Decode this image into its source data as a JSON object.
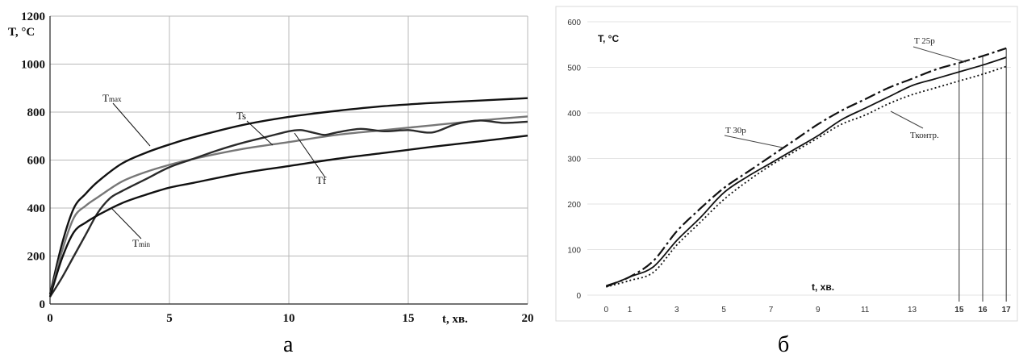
{
  "chart_data": [
    {
      "type": "line",
      "panel_label": "а",
      "xlabel": "t, хв.",
      "ylabel": "T, °C",
      "xlim": [
        0,
        20
      ],
      "ylim": [
        0,
        1200
      ],
      "xticks": [
        "0",
        "5",
        "10",
        "15",
        "20"
      ],
      "yticks": [
        "0",
        "200",
        "400",
        "600",
        "800",
        "1000",
        "1200"
      ],
      "grid": true,
      "series": [
        {
          "name": "Tmax",
          "color": "#111111",
          "x": [
            0,
            0.5,
            1,
            1.5,
            2,
            3,
            4,
            5,
            6,
            8,
            10,
            12,
            14,
            16,
            18,
            20
          ],
          "y": [
            40,
            250,
            400,
            460,
            510,
            585,
            630,
            665,
            695,
            745,
            780,
            805,
            825,
            838,
            848,
            858
          ]
        },
        {
          "name": "Ts",
          "color": "#777777",
          "x": [
            0,
            0.5,
            1,
            1.5,
            2,
            3,
            4,
            5,
            6,
            8,
            10,
            12,
            14,
            16,
            18,
            20
          ],
          "y": [
            30,
            220,
            360,
            410,
            445,
            510,
            550,
            580,
            605,
            645,
            675,
            705,
            725,
            745,
            765,
            782
          ]
        },
        {
          "name": "Tf",
          "color": "#2a2a2a",
          "x": [
            0,
            0.5,
            1,
            1.5,
            2,
            2.5,
            3,
            4,
            5,
            6,
            7,
            8,
            9,
            10,
            10.5,
            11,
            11.5,
            12,
            13,
            14,
            15,
            16,
            17,
            18,
            19,
            20
          ],
          "y": [
            30,
            110,
            200,
            290,
            380,
            440,
            470,
            520,
            570,
            605,
            640,
            670,
            695,
            720,
            725,
            715,
            705,
            715,
            730,
            720,
            725,
            715,
            750,
            765,
            755,
            760
          ]
        },
        {
          "name": "Tmin",
          "color": "#111111",
          "x": [
            0,
            0.5,
            1,
            1.5,
            2,
            3,
            4,
            5,
            6,
            8,
            10,
            12,
            14,
            16,
            18,
            20
          ],
          "y": [
            30,
            190,
            300,
            340,
            370,
            420,
            455,
            485,
            505,
            545,
            575,
            605,
            630,
            655,
            678,
            702
          ]
        }
      ],
      "annotations": [
        {
          "text": "Tmax",
          "main": "T",
          "sub": "max"
        },
        {
          "text": "Ts",
          "main": "Ts",
          "sub": ""
        },
        {
          "text": "Tf",
          "main": "Tf",
          "sub": ""
        },
        {
          "text": "Tmin",
          "main": "T",
          "sub": "min"
        }
      ]
    },
    {
      "type": "line",
      "panel_label": "б",
      "xlabel": "t, хв.",
      "ylabel": "T, °C",
      "xlim": [
        -0.8,
        17.2
      ],
      "ylim": [
        0,
        600
      ],
      "xticks": [
        "0",
        "1",
        "3",
        "5",
        "7",
        "9",
        "11",
        "13",
        "15",
        "16",
        "17"
      ],
      "xticks_red": [
        "15",
        "16",
        "17"
      ],
      "yticks": [
        "0",
        "100",
        "200",
        "300",
        "400",
        "500",
        "600"
      ],
      "grid": true,
      "series": [
        {
          "name": "T 30р",
          "style": "dashdot",
          "color": "#111111",
          "x": [
            0,
            1,
            2,
            3,
            4,
            5,
            6,
            7,
            8,
            9,
            10,
            11,
            12,
            13,
            14,
            15,
            16,
            17
          ],
          "y": [
            20,
            40,
            75,
            140,
            190,
            235,
            270,
            305,
            340,
            375,
            405,
            430,
            455,
            475,
            495,
            510,
            525,
            542
          ]
        },
        {
          "name": "T 25р",
          "style": "solid",
          "color": "#111111",
          "x": [
            0,
            1,
            2,
            3,
            4,
            5,
            6,
            7,
            8,
            9,
            10,
            11,
            12,
            13,
            14,
            15,
            16,
            17
          ],
          "y": [
            18,
            40,
            62,
            120,
            170,
            225,
            260,
            290,
            320,
            350,
            385,
            410,
            435,
            460,
            475,
            490,
            505,
            522
          ]
        },
        {
          "name": "Ткон тр.",
          "style": "dotted",
          "color": "#111111",
          "x": [
            0,
            1,
            2,
            3,
            4,
            5,
            6,
            7,
            8,
            9,
            10,
            11,
            12,
            13,
            14,
            15,
            16,
            17
          ],
          "y": [
            18,
            32,
            50,
            110,
            160,
            210,
            250,
            285,
            315,
            345,
            375,
            395,
            420,
            440,
            455,
            470,
            485,
            502
          ]
        }
      ],
      "annotations": [
        {
          "text": "T 25р"
        },
        {
          "text": "T 30р"
        },
        {
          "text": "Тконтр."
        }
      ],
      "vertical_markers_x": [
        15,
        16,
        17
      ]
    }
  ]
}
